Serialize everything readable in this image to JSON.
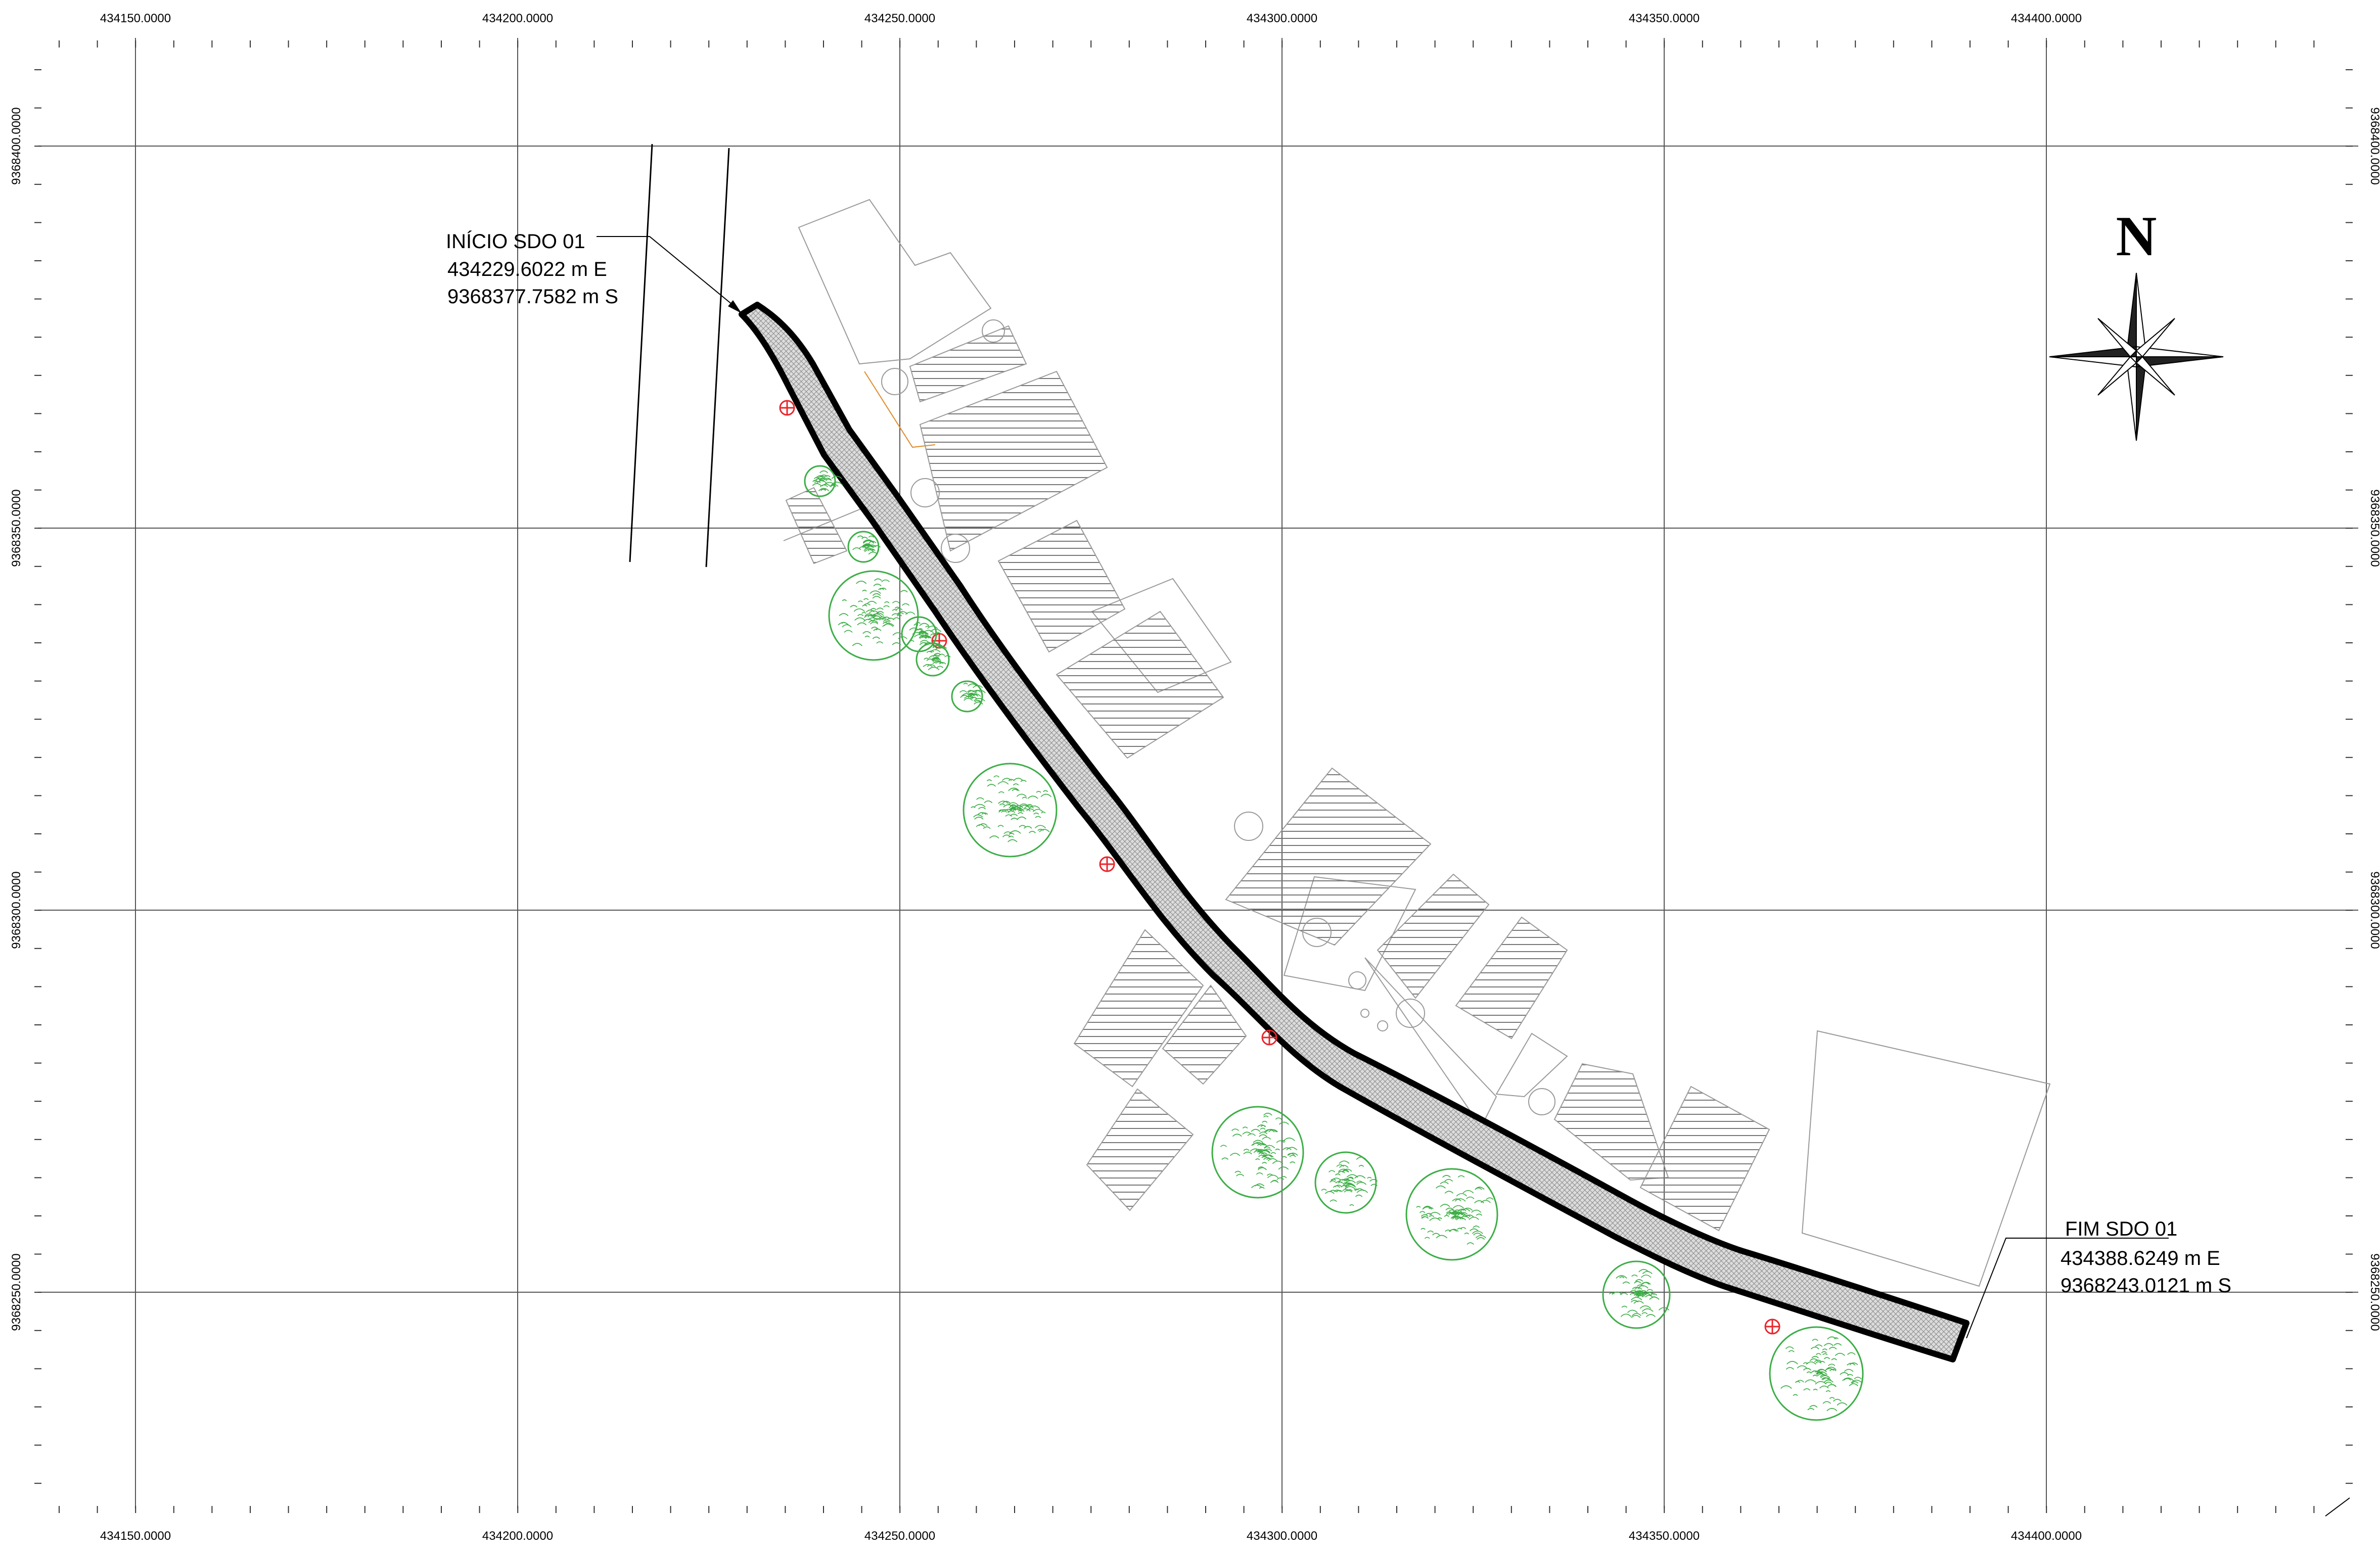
{
  "map": {
    "x_ticks": [
      "434150.0000",
      "434200.0000",
      "434250.0000",
      "434300.0000",
      "434350.0000",
      "434400.0000"
    ],
    "y_ticks": [
      "9368400.0000",
      "9368350.0000",
      "9368300.0000",
      "9368250.0000"
    ],
    "start": {
      "title": "INÍCIO SDO 01",
      "easting": "434229.6022 m E",
      "northing": "9368377.7582 m S"
    },
    "end": {
      "title": "FIM SDO 01",
      "easting": "434388.6249 m E",
      "northing": "9368243.0121 m S"
    },
    "north_label": "N",
    "colors": {
      "grid": "#555555",
      "road": "#000000",
      "road_fill": "#c8c8c8",
      "building": "#9a9a9a",
      "hatch": "#777777",
      "tree": "#3cae46",
      "marker": "#e8262b",
      "boundary": "#e08a2a"
    }
  }
}
